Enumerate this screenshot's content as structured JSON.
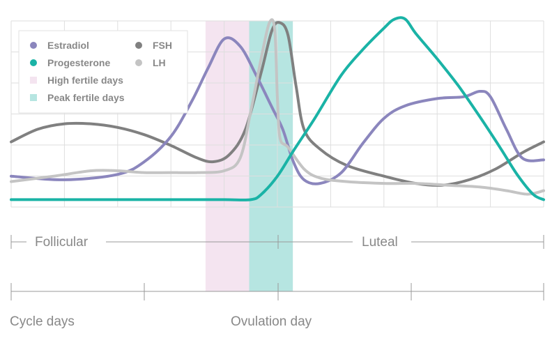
{
  "chart_data": {
    "type": "line",
    "title": "",
    "x_domain": [
      0,
      100
    ],
    "y_domain": [
      0,
      100
    ],
    "grid": true,
    "legend_position": "top-left",
    "legend": [
      {
        "label": "Estradiol",
        "kind": "line",
        "color": "#8b86bd"
      },
      {
        "label": "FSH",
        "kind": "line",
        "color": "#808080"
      },
      {
        "label": "Progesterone",
        "kind": "line",
        "color": "#1ab3a6"
      },
      {
        "label": "LH",
        "kind": "line",
        "color": "#c4c4c4"
      },
      {
        "label": "High fertile days",
        "kind": "band",
        "color": "#f4e4f0"
      },
      {
        "label": "Peak fertile days",
        "kind": "band",
        "color": "#b6e5e1"
      }
    ],
    "bands": [
      {
        "name": "High fertile days",
        "x_start": 36.5,
        "x_end": 44.7,
        "color": "#f4e4f0"
      },
      {
        "name": "Peak fertile days",
        "x_start": 44.7,
        "x_end": 52.9,
        "color": "#b6e5e1"
      }
    ],
    "series": [
      {
        "name": "Estradiol",
        "color": "#8b86bd",
        "points": [
          [
            0,
            14
          ],
          [
            10,
            12
          ],
          [
            20,
            15
          ],
          [
            25,
            22
          ],
          [
            30,
            36
          ],
          [
            34,
            56
          ],
          [
            37,
            74
          ],
          [
            40,
            90
          ],
          [
            43,
            86
          ],
          [
            46,
            70
          ],
          [
            49,
            52
          ],
          [
            51,
            40
          ],
          [
            53,
            22
          ],
          [
            55,
            12
          ],
          [
            58,
            10
          ],
          [
            62,
            16
          ],
          [
            66,
            32
          ],
          [
            70,
            46
          ],
          [
            74,
            53
          ],
          [
            80,
            57
          ],
          [
            85,
            58
          ],
          [
            88,
            61
          ],
          [
            90,
            58
          ],
          [
            93,
            40
          ],
          [
            96,
            24
          ],
          [
            100,
            23
          ]
        ]
      },
      {
        "name": "FSH",
        "color": "#808080",
        "points": [
          [
            0,
            33
          ],
          [
            5,
            40
          ],
          [
            10,
            43
          ],
          [
            15,
            43
          ],
          [
            20,
            41
          ],
          [
            25,
            37
          ],
          [
            30,
            31
          ],
          [
            35,
            24
          ],
          [
            38,
            22
          ],
          [
            41,
            26
          ],
          [
            44,
            40
          ],
          [
            47,
            72
          ],
          [
            49,
            95
          ],
          [
            50.5,
            99
          ],
          [
            52,
            92
          ],
          [
            53.5,
            64
          ],
          [
            55,
            40
          ],
          [
            58,
            29
          ],
          [
            63,
            20
          ],
          [
            70,
            14
          ],
          [
            76,
            10
          ],
          [
            81,
            9
          ],
          [
            86,
            12
          ],
          [
            91,
            18
          ],
          [
            96,
            27
          ],
          [
            100,
            33
          ]
        ]
      },
      {
        "name": "Progesterone",
        "color": "#1ab3a6",
        "points": [
          [
            0,
            1
          ],
          [
            30,
            1
          ],
          [
            40,
            1
          ],
          [
            45,
            1
          ],
          [
            47,
            4
          ],
          [
            50,
            14
          ],
          [
            53,
            28
          ],
          [
            57,
            46
          ],
          [
            62,
            70
          ],
          [
            66,
            84
          ],
          [
            70,
            96
          ],
          [
            72,
            101
          ],
          [
            74,
            101
          ],
          [
            76,
            93
          ],
          [
            80,
            79
          ],
          [
            84,
            64
          ],
          [
            88,
            47
          ],
          [
            92,
            29
          ],
          [
            95,
            15
          ],
          [
            98,
            4
          ],
          [
            100,
            1
          ]
        ]
      },
      {
        "name": "LH",
        "color": "#c4c4c4",
        "points": [
          [
            0,
            11
          ],
          [
            8,
            14
          ],
          [
            15,
            17
          ],
          [
            20,
            17
          ],
          [
            25,
            16
          ],
          [
            30,
            16
          ],
          [
            35,
            16
          ],
          [
            40,
            17
          ],
          [
            43,
            24
          ],
          [
            45,
            50
          ],
          [
            47,
            80
          ],
          [
            48.5,
            99
          ],
          [
            49.5,
            95
          ],
          [
            50,
            57
          ],
          [
            50.5,
            35
          ],
          [
            52,
            30
          ],
          [
            55,
            18
          ],
          [
            58,
            13
          ],
          [
            63,
            11
          ],
          [
            70,
            10
          ],
          [
            76,
            10
          ],
          [
            82,
            9
          ],
          [
            88,
            8
          ],
          [
            93,
            6
          ],
          [
            97,
            4
          ],
          [
            100,
            6
          ]
        ]
      }
    ]
  },
  "phases": {
    "follicular": "Follicular",
    "luteal": "Luteal"
  },
  "axis": {
    "cycle_days": "Cycle days",
    "ovulation_day": "Ovulation day"
  }
}
